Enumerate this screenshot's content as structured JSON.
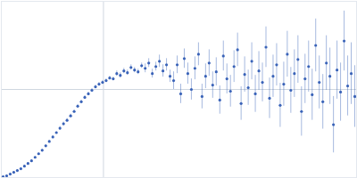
{
  "chart_data": {
    "type": "scatter",
    "color": "#3a63b8",
    "marker": "circle",
    "xlim": [
      0,
      400
    ],
    "ylim": [
      0,
      200
    ],
    "xticks": [
      115
    ],
    "yticks": [
      100
    ],
    "grid": true,
    "tick_labels": false,
    "x": [
      2,
      6,
      10,
      14,
      18,
      22,
      26,
      30,
      34,
      38,
      42,
      46,
      50,
      54,
      58,
      62,
      66,
      70,
      74,
      78,
      82,
      86,
      90,
      94,
      98,
      102,
      106,
      110,
      114,
      118,
      122,
      126,
      130,
      134,
      138,
      142,
      146,
      150,
      154,
      158,
      162,
      166,
      170,
      174,
      178,
      182,
      186,
      190,
      194,
      198,
      202,
      206,
      210,
      214,
      218,
      222,
      226,
      230,
      234,
      238,
      242,
      246,
      250,
      254,
      258,
      262,
      266,
      270,
      274,
      278,
      282,
      286,
      290,
      294,
      298,
      302,
      306,
      310,
      314,
      318,
      322,
      326,
      330,
      334,
      338,
      342,
      346,
      350,
      354,
      358,
      362,
      366,
      370,
      374,
      378,
      382,
      386,
      390,
      394,
      398
    ],
    "values": [
      1,
      2,
      4,
      6,
      8,
      10,
      13,
      16,
      19,
      23,
      27,
      31,
      36,
      41,
      46,
      51,
      56,
      61,
      65,
      70,
      75,
      81,
      86,
      91,
      95,
      99,
      103,
      106,
      108,
      110,
      113,
      112,
      118,
      116,
      121,
      119,
      125,
      122,
      120,
      127,
      124,
      130,
      118,
      126,
      132,
      121,
      128,
      115,
      110,
      128,
      95,
      135,
      118,
      100,
      124,
      140,
      92,
      115,
      130,
      105,
      120,
      88,
      138,
      112,
      98,
      126,
      145,
      84,
      117,
      102,
      132,
      95,
      121,
      108,
      148,
      90,
      115,
      128,
      82,
      106,
      140,
      99,
      118,
      134,
      75,
      112,
      126,
      94,
      150,
      108,
      86,
      130,
      115,
      60,
      122,
      97,
      155,
      104,
      118,
      92
    ],
    "error": [
      1,
      1,
      1,
      1,
      1,
      1,
      1,
      1,
      1,
      1,
      1,
      1,
      1,
      1,
      1,
      1,
      2,
      2,
      2,
      2,
      2,
      2,
      2,
      2,
      2,
      2,
      2,
      2,
      2,
      2,
      2,
      2,
      3,
      3,
      3,
      3,
      3,
      3,
      3,
      3,
      5,
      5,
      5,
      5,
      7,
      7,
      7,
      7,
      10,
      10,
      11,
      11,
      12,
      12,
      13,
      13,
      14,
      14,
      15,
      15,
      16,
      16,
      17,
      17,
      18,
      18,
      19,
      19,
      20,
      20,
      21,
      21,
      22,
      22,
      23,
      23,
      24,
      24,
      25,
      25,
      26,
      26,
      27,
      27,
      28,
      28,
      29,
      29,
      30,
      30,
      31,
      31,
      32,
      32,
      33,
      33,
      34,
      34,
      35,
      35
    ]
  }
}
